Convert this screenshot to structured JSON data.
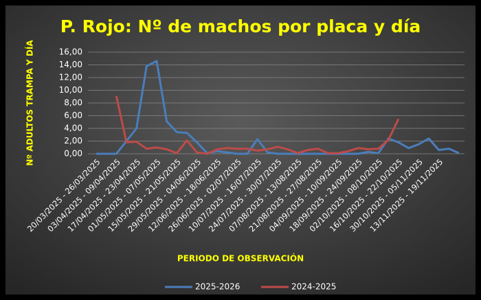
{
  "chart_data": {
    "type": "line",
    "title": "P. Rojo: Nº de machos por placa y día",
    "x_label": "PERIODO DE OBSERVACIÓN",
    "y_label": "Nº ADULTOS TRAMPA Y DÍA",
    "categories": [
      "20/03/2025 - 26/03/2025",
      null,
      "03/04/2025 - 09/04/2025",
      null,
      "17/04/2025 - 23/04/2025",
      null,
      "01/05/2025 - 07/05/2025",
      null,
      "15/05/2025 - 21/05/2025",
      null,
      "29/05/2025 - 04/06/2025",
      null,
      "12/06/2025 - 18/06/2025",
      null,
      "26/06/2025 - 02/07/2025",
      null,
      "10/07/2025 - 16/07/2025",
      null,
      "24/07/2025 - 30/07/2025",
      null,
      "07/08/2025 - 13/08/2025",
      null,
      "21/08/2025 - 27/08/2025",
      null,
      "04/09/2025 - 10/09/2025",
      null,
      "18/09/2025 - 24/09/2025",
      null,
      "02/10/2025 - 08/10/2025",
      null,
      "16/10/2025 - 22/10/2025",
      null,
      "30/10/2025 - 05/11/2025",
      null,
      "13/11/2025 - 19/11/2025",
      null,
      null
    ],
    "series": [
      {
        "name": "2025-2026",
        "color": "#4a7ebb",
        "values": [
          0,
          0,
          0,
          2.0,
          4.0,
          13.8,
          14.6,
          5.1,
          3.4,
          3.3,
          1.8,
          0.1,
          0.4,
          0.2,
          0,
          0,
          2.3,
          0.2,
          0,
          0,
          0,
          0,
          0,
          0,
          0,
          0,
          0,
          0.3,
          0.1,
          2.4,
          1.8,
          0.9,
          1.5,
          2.4,
          0.6,
          0.8,
          0.1
        ]
      },
      {
        "name": "2024-2025",
        "color": "#be4b48",
        "values": [
          null,
          null,
          9.1,
          1.8,
          1.9,
          0.8,
          1.0,
          0.7,
          0.1,
          2.1,
          0.2,
          0.0,
          0.7,
          0.9,
          0.8,
          0.8,
          0.5,
          0.7,
          1.1,
          0.7,
          0.1,
          0.6,
          0.8,
          0.1,
          0.1,
          0.4,
          0.9,
          0.7,
          0.8,
          2.2,
          5.5,
          null,
          null,
          null,
          null,
          null,
          null
        ]
      }
    ],
    "ylim": [
      0,
      16
    ],
    "yticks": [
      {
        "value": 0,
        "label": "0,00"
      },
      {
        "value": 2,
        "label": "2,00"
      },
      {
        "value": 4,
        "label": "4,00"
      },
      {
        "value": 6,
        "label": "6,00"
      },
      {
        "value": 8,
        "label": "8,00"
      },
      {
        "value": 10,
        "label": "10,00"
      },
      {
        "value": 12,
        "label": "12,00"
      },
      {
        "value": 14,
        "label": "14,00"
      },
      {
        "value": 16,
        "label": "16,00"
      }
    ],
    "grid": true,
    "legend": "bottom"
  }
}
